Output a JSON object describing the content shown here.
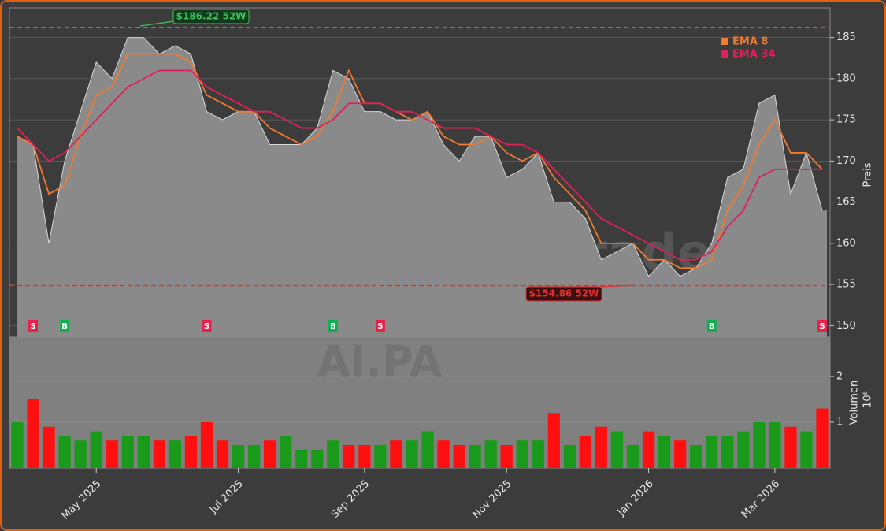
{
  "chart_data": [
    {
      "type": "area",
      "watermark": "forexsignale.trade",
      "ylabel": "Preis",
      "color": "#8a8a8a",
      "values": [
        173,
        172,
        160,
        170,
        176,
        182,
        180,
        185,
        185,
        183,
        184,
        183,
        176,
        175,
        176,
        176,
        172,
        172,
        172,
        174,
        181,
        180,
        176,
        176,
        175,
        175,
        176,
        172,
        170,
        173,
        173,
        168,
        169,
        171,
        165,
        165,
        163,
        158,
        159,
        160,
        156,
        158,
        156,
        157,
        160,
        168,
        169,
        177,
        178,
        166,
        171,
        164
      ],
      "series": [
        {
          "name": "EMA 8",
          "color": "#f07a30",
          "values": [
            173,
            172,
            166,
            167,
            173,
            178,
            179,
            183,
            183,
            183,
            183,
            182,
            178,
            177,
            176,
            176,
            174,
            173,
            172,
            173,
            176,
            181,
            177,
            177,
            176,
            175,
            176,
            173,
            172,
            172,
            173,
            171,
            170,
            171,
            168,
            166,
            164,
            160,
            160,
            160,
            158,
            158,
            157,
            157,
            158,
            164,
            167,
            172,
            175,
            171,
            171,
            169
          ]
        },
        {
          "name": "EMA 34",
          "color": "#e0205a",
          "values": [
            174,
            172,
            170,
            171,
            173,
            175,
            177,
            179,
            180,
            181,
            181,
            181,
            179,
            178,
            177,
            176,
            176,
            175,
            174,
            174,
            175,
            177,
            177,
            177,
            176,
            176,
            175,
            174,
            174,
            174,
            173,
            172,
            172,
            171,
            169,
            167,
            165,
            163,
            162,
            161,
            160,
            159,
            158,
            158,
            159,
            162,
            164,
            168,
            169,
            169,
            169,
            169
          ]
        }
      ],
      "annotations": [
        {
          "value": 186.22,
          "label": "$186.22 52W",
          "color": "#3cc060"
        },
        {
          "value": 154.86,
          "label": "$154.86 52W",
          "color": "#e03030"
        }
      ],
      "signals": [
        {
          "index": 1,
          "label": "S",
          "color": "#e8204a"
        },
        {
          "index": 3,
          "label": "B",
          "color": "#10b050"
        },
        {
          "index": 12,
          "label": "S",
          "color": "#e8204a"
        },
        {
          "index": 20,
          "label": "B",
          "color": "#10b050"
        },
        {
          "index": 23,
          "label": "S",
          "color": "#e8204a"
        },
        {
          "index": 44,
          "label": "B",
          "color": "#10b050"
        },
        {
          "index": 51,
          "label": "S",
          "color": "#e8204a"
        }
      ],
      "ylim": [
        148.6,
        188.6
      ],
      "yticks": [
        150,
        155,
        160,
        165,
        170,
        175,
        180,
        185
      ],
      "grid": true,
      "legend": "upper right"
    },
    {
      "type": "bar",
      "title": "AI.PA",
      "ylabel": "Volumen",
      "offset_label": "10⁶",
      "up_color": "#1a9a1a",
      "down_color": "#ff1010",
      "categories": [
        null,
        null,
        null,
        null,
        null,
        "May 2025",
        null,
        null,
        null,
        null,
        null,
        null,
        null,
        null,
        "Jul 2025",
        null,
        null,
        null,
        null,
        null,
        null,
        null,
        "Sep 2025",
        null,
        null,
        null,
        null,
        null,
        null,
        null,
        null,
        "Nov 2025",
        null,
        null,
        null,
        null,
        null,
        null,
        null,
        null,
        "Jan 2026",
        null,
        null,
        null,
        null,
        null,
        null,
        null,
        "Mar 2026",
        null,
        null,
        null
      ],
      "values": [
        1.0,
        1.5,
        0.9,
        0.7,
        0.6,
        0.8,
        0.6,
        0.7,
        0.7,
        0.6,
        0.6,
        0.7,
        1.0,
        0.6,
        0.5,
        0.5,
        0.6,
        0.7,
        0.4,
        0.4,
        0.6,
        0.5,
        0.5,
        0.5,
        0.6,
        0.6,
        0.8,
        0.6,
        0.5,
        0.5,
        0.6,
        0.5,
        0.6,
        0.6,
        1.2,
        0.5,
        0.7,
        0.9,
        0.8,
        0.5,
        0.8,
        0.7,
        0.6,
        0.5,
        0.7,
        0.7,
        0.8,
        1.0,
        1.0,
        0.9,
        0.8,
        1.3
      ],
      "ylim": [
        0,
        2.86
      ],
      "yticks": [
        1,
        2
      ],
      "grid": true
    }
  ]
}
